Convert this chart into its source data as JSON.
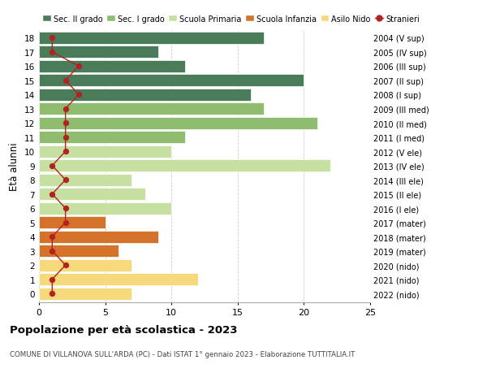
{
  "ages": [
    18,
    17,
    16,
    15,
    14,
    13,
    12,
    11,
    10,
    9,
    8,
    7,
    6,
    5,
    4,
    3,
    2,
    1,
    0
  ],
  "right_labels": [
    "2004 (V sup)",
    "2005 (IV sup)",
    "2006 (III sup)",
    "2007 (II sup)",
    "2008 (I sup)",
    "2009 (III med)",
    "2010 (II med)",
    "2011 (I med)",
    "2012 (V ele)",
    "2013 (IV ele)",
    "2014 (III ele)",
    "2015 (II ele)",
    "2016 (I ele)",
    "2017 (mater)",
    "2018 (mater)",
    "2019 (mater)",
    "2020 (nido)",
    "2021 (nido)",
    "2022 (nido)"
  ],
  "bar_values": [
    17,
    9,
    11,
    20,
    16,
    17,
    21,
    11,
    10,
    22,
    7,
    8,
    10,
    5,
    9,
    6,
    7,
    12,
    7
  ],
  "bar_colors": [
    "#4a7c59",
    "#4a7c59",
    "#4a7c59",
    "#4a7c59",
    "#4a7c59",
    "#8fbc6e",
    "#8fbc6e",
    "#8fbc6e",
    "#c5e0a0",
    "#c5e0a0",
    "#c5e0a0",
    "#c5e0a0",
    "#c5e0a0",
    "#d4722a",
    "#d4722a",
    "#d4722a",
    "#f5d97a",
    "#f5d97a",
    "#f5d97a"
  ],
  "stranieri_values": [
    1,
    1,
    3,
    2,
    3,
    2,
    2,
    2,
    2,
    1,
    2,
    1,
    2,
    2,
    1,
    1,
    2,
    1,
    1
  ],
  "legend_labels": [
    "Sec. II grado",
    "Sec. I grado",
    "Scuola Primaria",
    "Scuola Infanzia",
    "Asilo Nido",
    "Stranieri"
  ],
  "legend_colors": [
    "#4a7c59",
    "#8fbc6e",
    "#c5e0a0",
    "#d4722a",
    "#f5d97a",
    "#b22222"
  ],
  "ylabel": "Età alunni",
  "title": "Popolazione per età scolastica - 2023",
  "subtitle": "COMUNE DI VILLANOVA SULL'ARDA (PC) - Dati ISTAT 1° gennaio 2023 - Elaborazione TUTTITALIA.IT",
  "xlim": [
    0,
    25
  ],
  "background_color": "#ffffff",
  "grid_color": "#cccccc",
  "stranieri_color": "#b22222"
}
